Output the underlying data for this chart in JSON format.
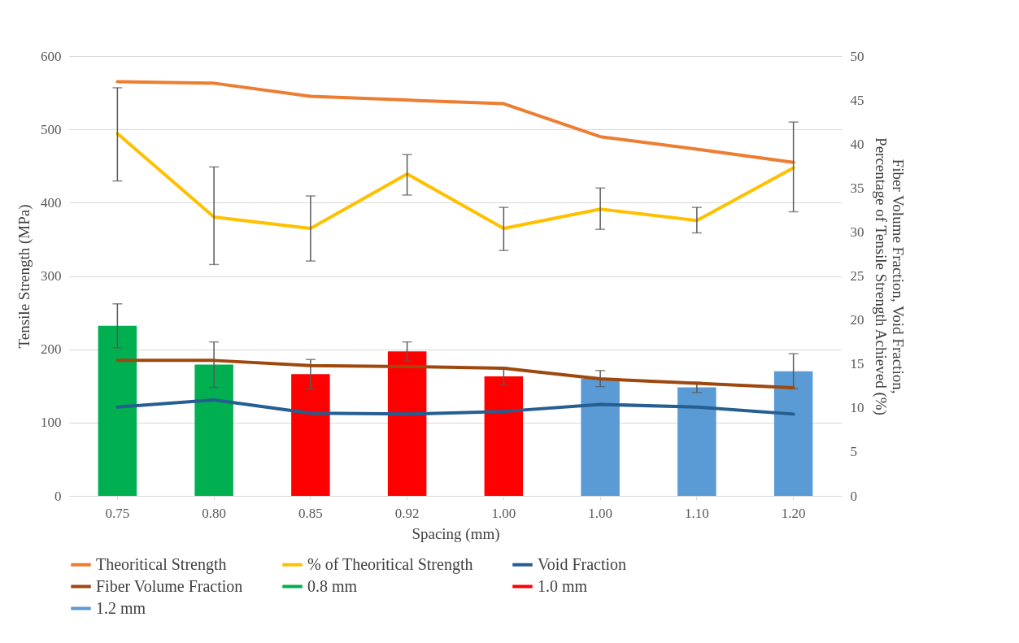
{
  "chart_data": {
    "type": "bar",
    "xlabel": "Spacing (mm)",
    "ylabel": "Tensile Strength (MPa)",
    "y2label": "Fiber Volume Fraction, Void Fraction, Percentage of Tensile Strength Achieved (%)",
    "categories": [
      "0.75",
      "0.80",
      "0.85",
      "0.92",
      "1.00",
      "1.00",
      "1.10",
      "1.20"
    ],
    "ylim": [
      0,
      600
    ],
    "yticks": [
      0,
      100,
      200,
      300,
      400,
      500,
      600
    ],
    "y2lim": [
      0,
      50
    ],
    "y2ticks": [
      0,
      5,
      10,
      15,
      20,
      25,
      30,
      35,
      40,
      45,
      50
    ],
    "grid": "y",
    "legend": "bottom",
    "series": [
      {
        "name": "Theoritical Strength",
        "type": "line",
        "color": "#ed7d31",
        "values": [
          565,
          563,
          545,
          540,
          535,
          490,
          473,
          455
        ]
      },
      {
        "name": "% of Theoritical Strength",
        "type": "line",
        "axis": "y2",
        "color": "#ffc000",
        "values": [
          41.2,
          31.7,
          30.4,
          36.6,
          30.4,
          32.6,
          31.3,
          37.3
        ],
        "errors": [
          [
            35.8,
            46.4
          ],
          [
            26.3,
            37.4
          ],
          [
            26.7,
            34.1
          ],
          [
            34.2,
            38.8
          ],
          [
            27.9,
            32.8
          ],
          [
            30.3,
            35.0
          ],
          [
            29.9,
            32.8
          ],
          [
            32.3,
            42.5
          ]
        ]
      },
      {
        "name": "Void Fraction",
        "type": "line",
        "axis": "y2",
        "color": "#255e91",
        "values": [
          10.1,
          10.9,
          9.4,
          9.3,
          9.6,
          10.4,
          10.1,
          9.3
        ]
      },
      {
        "name": "Fiber Volume Fraction",
        "type": "line",
        "axis": "y2",
        "color": "#9e480e",
        "values": [
          15.4,
          15.4,
          14.8,
          14.7,
          14.5,
          13.3,
          12.8,
          12.3
        ]
      },
      {
        "name": "0.8 mm",
        "color": "#00b050",
        "values": [
          232,
          179,
          null,
          null,
          null,
          null,
          null,
          null
        ],
        "errors": [
          30,
          31,
          null,
          null,
          null,
          null,
          null,
          null
        ]
      },
      {
        "name": "1.0 mm",
        "color": "#ff0000",
        "values": [
          null,
          null,
          166,
          197,
          163,
          null,
          null,
          null
        ],
        "errors": [
          null,
          null,
          20,
          13,
          12,
          null,
          null,
          null
        ]
      },
      {
        "name": "1.2 mm",
        "color": "#5b9bd5",
        "values": [
          null,
          null,
          null,
          null,
          null,
          160,
          148,
          170
        ],
        "errors": [
          null,
          null,
          null,
          null,
          null,
          11,
          7,
          24
        ]
      }
    ]
  }
}
